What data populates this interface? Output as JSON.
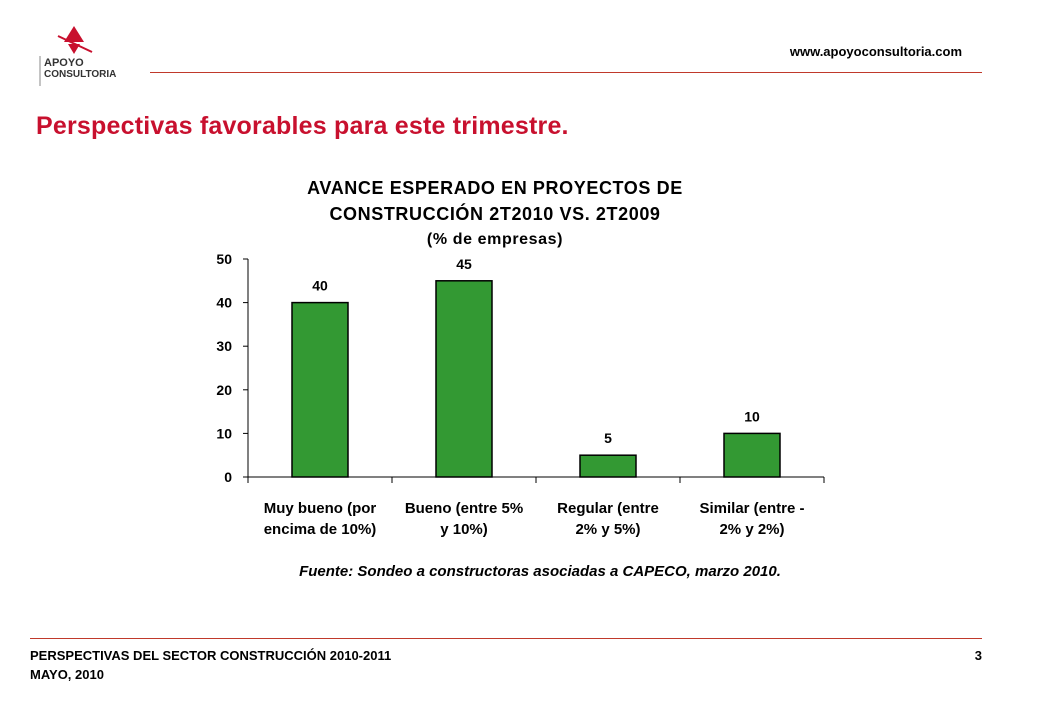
{
  "header": {
    "logo_text_line1": "APOYO",
    "logo_text_line2": "CONSULTORIA",
    "website": "www.apoyoconsultoria.com"
  },
  "slide_title": "Perspectivas favorables para este trimestre.",
  "chart_title": {
    "line1": "AVANCE ESPERADO EN PROYECTOS DE",
    "line2": "CONSTRUCCIÓN  2T2010  VS. 2T2009",
    "line3": "(% de empresas)"
  },
  "source_note": "Fuente: Sondeo a constructoras asociadas a CAPECO, marzo 2010.",
  "footer": {
    "line1": "PERSPECTIVAS DEL SECTOR CONSTRUCCIÓN 2010-2011",
    "line2": "MAYO, 2010",
    "page_number": "3"
  },
  "colors": {
    "brand_red": "#c8102e",
    "rule_red": "#c0392b",
    "bar_green": "#339933"
  },
  "chart_data": {
    "type": "bar",
    "title": "AVANCE ESPERADO EN PROYECTOS DE CONSTRUCCIÓN  2T2010  VS. 2T2009",
    "subtitle": "(% de empresas)",
    "categories": [
      [
        "Muy bueno (por",
        "encima de 10%)"
      ],
      [
        "Bueno (entre 5%",
        "y 10%)"
      ],
      [
        "Regular (entre",
        "2% y 5%)"
      ],
      [
        "Similar (entre -",
        "2% y 2%)"
      ]
    ],
    "values": [
      40,
      45,
      5,
      10
    ],
    "data_labels": [
      "40",
      "45",
      "5",
      "10"
    ],
    "yticks": [
      0,
      10,
      20,
      30,
      40,
      50
    ],
    "ylim": [
      0,
      50
    ],
    "xlabel": "",
    "ylabel": "",
    "grid": false,
    "legend": "none"
  }
}
